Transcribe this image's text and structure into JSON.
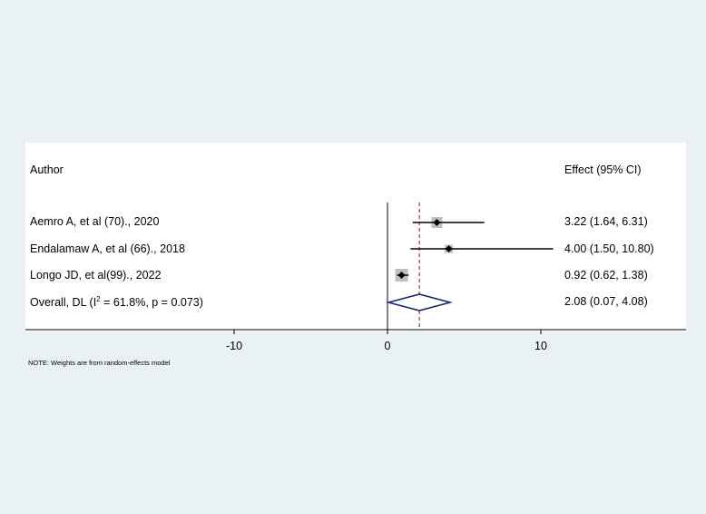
{
  "chart_data": {
    "type": "forest",
    "columns": {
      "left": "Author",
      "right": "Effect (95% CI)"
    },
    "studies": [
      {
        "label": "Aemro A, et al (70)., 2020",
        "effect": 3.22,
        "ci_low": 1.64,
        "ci_high": 6.31,
        "effect_text": "3.22 (1.64, 6.31)"
      },
      {
        "label": "Endalamaw A, et al (66)., 2018",
        "effect": 4.0,
        "ci_low": 1.5,
        "ci_high": 10.8,
        "effect_text": "4.00 (1.50, 10.80)"
      },
      {
        "label": "Longo JD, et al(99)., 2022",
        "effect": 0.92,
        "ci_low": 0.62,
        "ci_high": 1.38,
        "effect_text": "0.92 (0.62, 1.38)"
      }
    ],
    "overall": {
      "label_prefix": "Overall, DL (I",
      "label_sup": "2",
      "label_suffix": " = 61.8%, p = 0.073)",
      "effect": 2.08,
      "ci_low": 0.07,
      "ci_high": 4.08,
      "effect_text": "2.08 (0.07, 4.08)"
    },
    "x_ticks": [
      -10,
      0,
      10
    ],
    "x_range": [
      -23.5,
      19.2
    ],
    "null_line": 0,
    "note": "NOTE: Weights are from random-effects model",
    "colors": {
      "diamond": "#1a2a6c",
      "overall_line": "#8b1a1a",
      "weight_box": "#bfbfbf"
    }
  }
}
